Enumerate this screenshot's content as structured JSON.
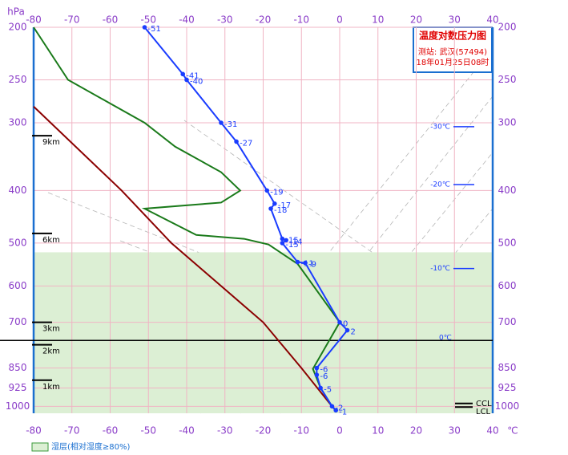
{
  "chart_data": {
    "type": "skewt",
    "title": "温度对数压力图",
    "station": "测站: 武汉(57494)",
    "time": "18年01月25日08时",
    "y_unit": "hPa",
    "x_unit": "℃",
    "xlim": [
      -80,
      40
    ],
    "xticks": [
      -80,
      -70,
      -60,
      -50,
      -40,
      -30,
      -20,
      -10,
      0,
      10,
      20,
      30,
      40
    ],
    "ylim": [
      1030,
      200
    ],
    "yticks": [
      200,
      250,
      300,
      400,
      500,
      600,
      700,
      850,
      925,
      1000
    ],
    "log_y": true,
    "grid": true,
    "temperature": {
      "color": "#1a3cff",
      "y": [
        200,
        244,
        250,
        300,
        325,
        400,
        423,
        432,
        491,
        494,
        500,
        542,
        544,
        700,
        724,
        850,
        875,
        925,
        1000,
        1017
      ],
      "x": [
        -51,
        -41,
        -40,
        -31,
        -27,
        -19,
        -17,
        -18,
        -15,
        -14,
        -15,
        -11,
        -9,
        0,
        2,
        -6,
        -6,
        -5,
        -2,
        -1
      ]
    },
    "dewpoint": {
      "color": "#1a7a1a",
      "y": [
        200,
        250,
        300,
        332,
        370,
        400,
        421,
        432,
        483,
        491,
        503,
        538,
        546,
        700,
        853,
        925,
        1000,
        1017
      ],
      "x": [
        -80,
        -71,
        -51,
        -43,
        -31,
        -26,
        -31,
        -51,
        -37.5,
        -25,
        -18.6,
        -12.4,
        -11,
        0,
        -7,
        -5,
        -2,
        -1
      ]
    },
    "state_curve": {
      "color": "#8b0000",
      "y": [
        280,
        400,
        500,
        700,
        850,
        1000,
        1017
      ],
      "x": [
        -80,
        -57,
        -44,
        -20,
        -10,
        -2,
        -1
      ]
    },
    "moist_layer": {
      "label": "湿层(相对湿度≥80%)",
      "color": "#dcefd4",
      "range": [
        520,
        1030
      ]
    },
    "heights": [
      {
        "label": "9km",
        "pressure": 317
      },
      {
        "label": "6km",
        "pressure": 480
      },
      {
        "label": "3km",
        "pressure": 700
      },
      {
        "label": "2km",
        "pressure": 770
      },
      {
        "label": "1km",
        "pressure": 895
      }
    ],
    "isotherm_labels": [
      {
        "label": "-30℃",
        "pressure": 305
      },
      {
        "label": "-20℃",
        "pressure": 390
      },
      {
        "label": "-10℃",
        "pressure": 557
      }
    ],
    "freezing_level": {
      "label": "0℃",
      "pressure": 756
    },
    "ccl": {
      "label": "CCL",
      "pressure": 988
    },
    "lcl": {
      "label": "LCL",
      "pressure": 1003
    }
  }
}
